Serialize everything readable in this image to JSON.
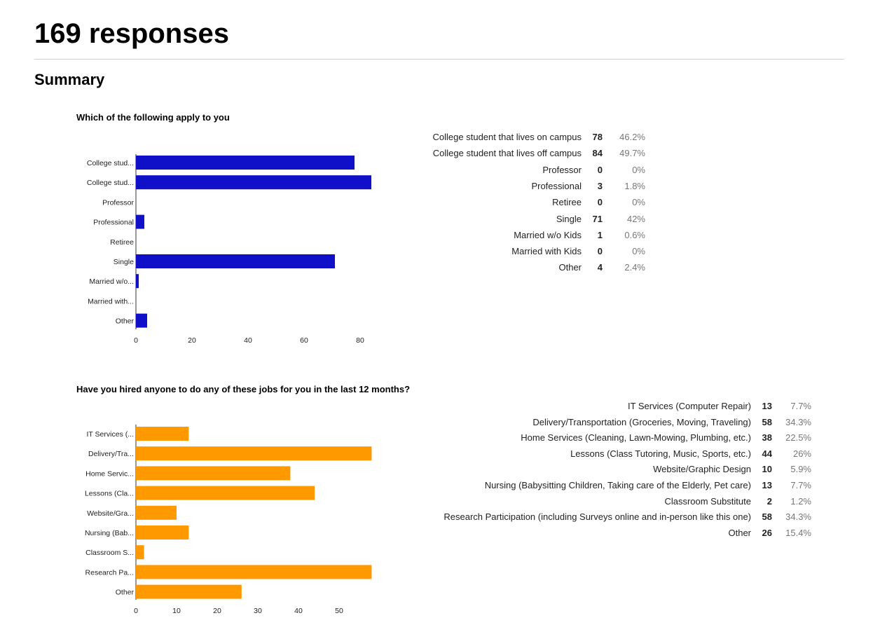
{
  "page": {
    "title": "169 responses",
    "summary_heading": "Summary"
  },
  "chart_data": [
    {
      "type": "bar",
      "title": "Which of the following apply to you",
      "orientation": "horizontal",
      "color": "#1010c8",
      "categories": [
        "College stud...",
        "College stud...",
        "Professor",
        "Professional",
        "Retiree",
        "Single",
        "Married w/o...",
        "Married with...",
        "Other"
      ],
      "values": [
        78,
        84,
        0,
        3,
        0,
        71,
        1,
        0,
        4
      ],
      "xticks": [
        0,
        20,
        40,
        60,
        80
      ],
      "xlim": [
        0,
        84
      ],
      "grid": false,
      "legend": "none",
      "table": [
        {
          "label": "College student that lives on campus",
          "count": "78",
          "pct": "46.2%"
        },
        {
          "label": "College student that lives off campus",
          "count": "84",
          "pct": "49.7%"
        },
        {
          "label": "Professor",
          "count": "0",
          "pct": "0%"
        },
        {
          "label": "Professional",
          "count": "3",
          "pct": "1.8%"
        },
        {
          "label": "Retiree",
          "count": "0",
          "pct": "0%"
        },
        {
          "label": "Single",
          "count": "71",
          "pct": "42%"
        },
        {
          "label": "Married w/o Kids",
          "count": "1",
          "pct": "0.6%"
        },
        {
          "label": "Married with Kids",
          "count": "0",
          "pct": "0%"
        },
        {
          "label": "Other",
          "count": "4",
          "pct": "2.4%"
        }
      ]
    },
    {
      "type": "bar",
      "title": "Have you hired anyone to do any of these jobs for you in the last 12 months?",
      "orientation": "horizontal",
      "color": "#ff9900",
      "categories": [
        "IT Services (...",
        "Delivery/Tra...",
        "Home Servic...",
        "Lessons (Cla...",
        "Website/Gra...",
        "Nursing (Bab...",
        "Classroom S...",
        "Research Pa...",
        "Other"
      ],
      "values": [
        13,
        58,
        38,
        44,
        10,
        13,
        2,
        58,
        26
      ],
      "xticks": [
        0,
        10,
        20,
        30,
        40,
        50
      ],
      "xlim": [
        0,
        58
      ],
      "grid": false,
      "legend": "none",
      "table": [
        {
          "label": "IT Services (Computer Repair)",
          "count": "13",
          "pct": "7.7%"
        },
        {
          "label": "Delivery/Transportation (Groceries, Moving, Traveling)",
          "count": "58",
          "pct": "34.3%"
        },
        {
          "label": "Home Services (Cleaning, Lawn-Mowing, Plumbing, etc.)",
          "count": "38",
          "pct": "22.5%"
        },
        {
          "label": "Lessons (Class Tutoring, Music, Sports, etc.)",
          "count": "44",
          "pct": "26%"
        },
        {
          "label": "Website/Graphic Design",
          "count": "10",
          "pct": "5.9%"
        },
        {
          "label": "Nursing (Babysitting Children, Taking care of the Elderly, Pet care)",
          "count": "13",
          "pct": "7.7%"
        },
        {
          "label": "Classroom Substitute",
          "count": "2",
          "pct": "1.2%"
        },
        {
          "label": "Research Participation (including Surveys online and in-person like this one)",
          "count": "58",
          "pct": "34.3%"
        },
        {
          "label": "Other",
          "count": "26",
          "pct": "15.4%"
        }
      ]
    }
  ]
}
